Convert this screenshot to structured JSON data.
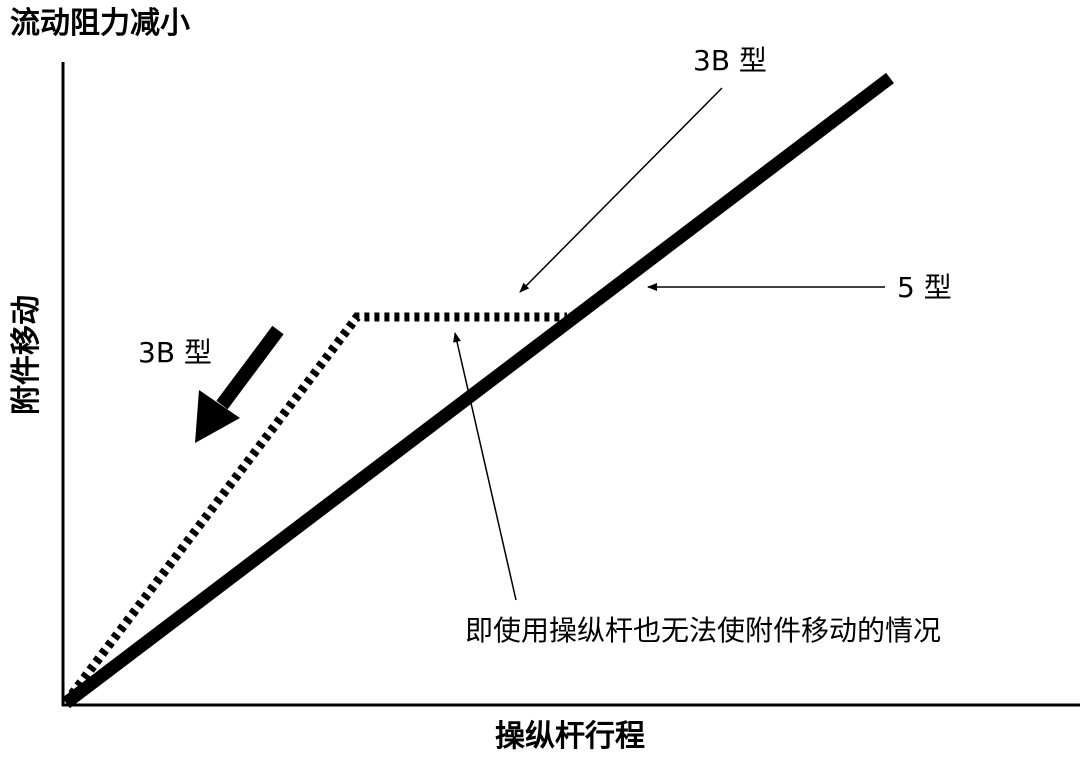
{
  "diagram": {
    "y_axis_top_label": "流动阻力减小",
    "y_axis_label": "附件移动",
    "x_axis_label": "操纵杆行程",
    "labels": {
      "type_3b_top": "3B 型",
      "type_5": "5 型",
      "type_3b_left": "3B 型",
      "note": "即使用操纵杆也无法使附件移动的情况"
    }
  }
}
